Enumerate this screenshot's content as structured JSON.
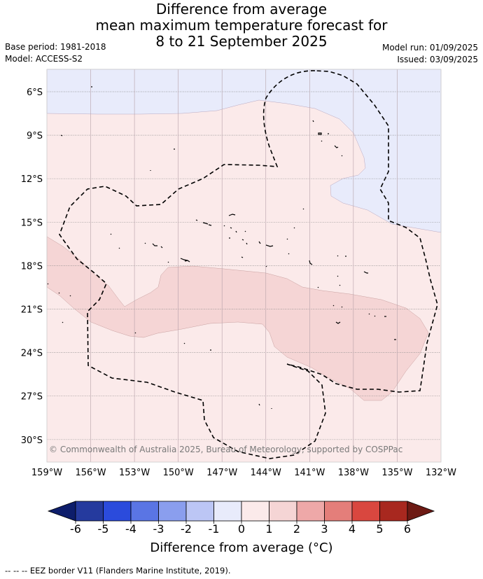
{
  "title": {
    "line1": "Difference from average",
    "line2": "mean maximum temperature forecast for",
    "line3": "8 to 21 September 2025"
  },
  "meta": {
    "base_period": "Base period: 1981-2018",
    "model": "Model: ACCESS-S2",
    "model_run": "Model run: 01/09/2025",
    "issued": "Issued: 03/09/2025"
  },
  "map": {
    "lat_labels": [
      "6°S",
      "9°S",
      "12°S",
      "15°S",
      "18°S",
      "21°S",
      "24°S",
      "27°S",
      "30°S"
    ],
    "lon_labels": [
      "159°W",
      "156°W",
      "153°W",
      "150°W",
      "147°W",
      "144°W",
      "141°W",
      "138°W",
      "135°W",
      "132°W"
    ],
    "credit": "© Commonwealth of Australia 2025, Bureau of Meteorology, supported by COSPPac",
    "colors": {
      "neg1_0": "#e8ebfb",
      "pos0_1": "#fbeaea",
      "pos1_2": "#f5d5d5",
      "grid": "#a0a0a0"
    }
  },
  "colorbar": {
    "ticks": [
      "-6",
      "-5",
      "-4",
      "-3",
      "-2",
      "-1",
      "0",
      "1",
      "2",
      "3",
      "4",
      "5",
      "6"
    ],
    "colors": [
      "#0d1d6b",
      "#253a9e",
      "#2b4bdc",
      "#5a75e4",
      "#8a9eee",
      "#bcc6f5",
      "#e8ebfb",
      "#fbeaea",
      "#f5d5d5",
      "#eea8a8",
      "#e47e7a",
      "#d9473f",
      "#a8281f",
      "#6d1a14"
    ],
    "label": "Difference from average (°C)"
  },
  "footer": "-- -- -- EEZ border V11 (Flanders Marine Institute, 2019)."
}
